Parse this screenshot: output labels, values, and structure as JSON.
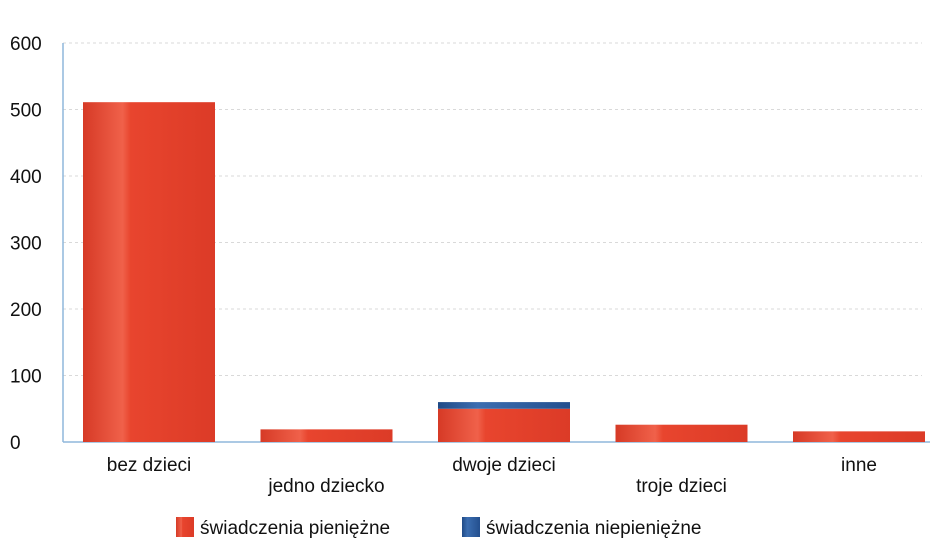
{
  "chart_data": {
    "type": "bar",
    "stacked": true,
    "categories": [
      "bez dzieci",
      "jedno dziecko",
      "dwoje dzieci",
      "troje dzieci",
      "inne"
    ],
    "series": [
      {
        "name": "świadczenia pieniężne",
        "values": [
          511,
          19,
          50,
          26,
          16
        ],
        "color": "#e8452e"
      },
      {
        "name": "świadczenia niepieniężne",
        "values": [
          0,
          0,
          10,
          0,
          0
        ],
        "color": "#2a5a9a"
      }
    ],
    "y_ticks": [
      "0",
      "100",
      "200",
      "300",
      "400",
      "500",
      "600"
    ],
    "ylim": [
      0,
      600
    ],
    "grid": true,
    "legend_position": "bottom"
  }
}
